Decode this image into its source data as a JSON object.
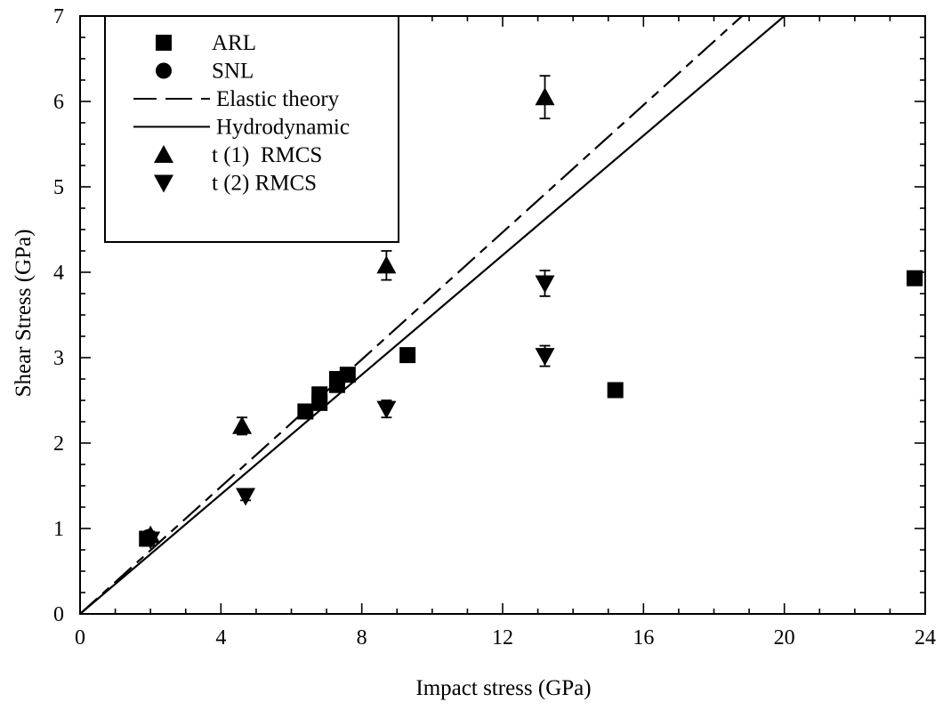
{
  "chart_data": {
    "type": "scatter",
    "title": "",
    "xlabel": "Impact stress (GPa)",
    "ylabel": "Shear Stress (GPa)",
    "xlim": [
      0,
      24
    ],
    "ylim": [
      0,
      7
    ],
    "xticks": [
      0,
      4,
      8,
      12,
      16,
      20,
      24
    ],
    "yticks": [
      0,
      1,
      2,
      3,
      4,
      5,
      6,
      7
    ],
    "grid": false,
    "legend_position": "top-left",
    "series": [
      {
        "name": "ARL",
        "kind": "points",
        "marker": "square",
        "points": [
          {
            "x": 1.9,
            "y": 0.88
          },
          {
            "x": 6.4,
            "y": 2.37
          },
          {
            "x": 6.8,
            "y": 2.47
          },
          {
            "x": 6.8,
            "y": 2.57
          },
          {
            "x": 7.3,
            "y": 2.68
          },
          {
            "x": 7.3,
            "y": 2.75
          },
          {
            "x": 7.6,
            "y": 2.8
          },
          {
            "x": 9.3,
            "y": 3.03
          },
          {
            "x": 15.2,
            "y": 2.62
          },
          {
            "x": 23.7,
            "y": 3.93
          }
        ]
      },
      {
        "name": "SNL",
        "kind": "points",
        "marker": "circle",
        "points": [
          {
            "x": 1.95,
            "y": 0.9
          }
        ]
      },
      {
        "name": "Elastic theory",
        "kind": "line",
        "dash": true,
        "points": [
          {
            "x": 0,
            "y": 0
          },
          {
            "x": 18.8,
            "y": 7.0
          }
        ]
      },
      {
        "name": "Hydrodynamic",
        "kind": "line",
        "dash": false,
        "points": [
          {
            "x": 0,
            "y": 0
          },
          {
            "x": 20.0,
            "y": 7.0
          }
        ]
      },
      {
        "name": "t (1)  RMCS",
        "kind": "points",
        "marker": "triangle-up",
        "points": [
          {
            "x": 2.0,
            "y": 0.92
          },
          {
            "x": 4.6,
            "y": 2.2,
            "err": 0.1
          },
          {
            "x": 8.7,
            "y": 4.08,
            "err": 0.17
          },
          {
            "x": 13.2,
            "y": 6.05,
            "err": 0.25
          }
        ]
      },
      {
        "name": "t (2) RMCS",
        "kind": "points",
        "marker": "triangle-down",
        "points": [
          {
            "x": 2.0,
            "y": 0.87
          },
          {
            "x": 4.7,
            "y": 1.38,
            "err": 0.05
          },
          {
            "x": 8.7,
            "y": 2.4,
            "err": 0.1
          },
          {
            "x": 13.2,
            "y": 3.02,
            "err": 0.12
          },
          {
            "x": 13.2,
            "y": 3.87,
            "err": 0.15
          }
        ]
      }
    ]
  }
}
